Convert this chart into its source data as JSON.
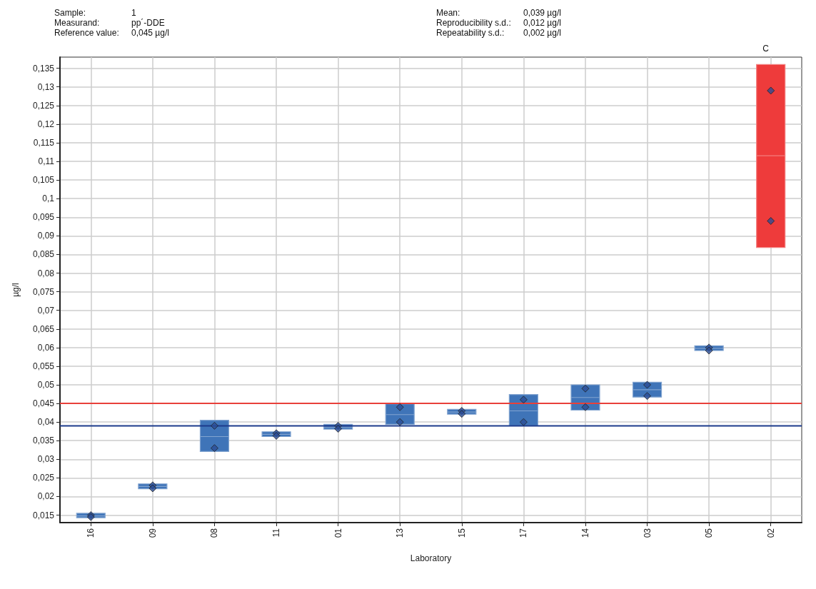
{
  "chart_data": {
    "type": "box",
    "annotations": [
      "Sample:",
      "1",
      "Measurand:",
      "pp´-DDE",
      "Reference value:",
      "0,045 µg/l",
      "Mean:",
      "0,039 µg/l",
      "Reproducibility s.d.:",
      "0,012 µg/l",
      "Repeatability s.d.:",
      "0,002 µg/l",
      "C"
    ],
    "xlabel": "Laboratory",
    "ylabel": "µg/l",
    "categories": [
      "16",
      "09",
      "08",
      "11",
      "01",
      "13",
      "15",
      "17",
      "14",
      "03",
      "05",
      "02"
    ],
    "series": [
      {
        "color": "#3f74b8",
        "boxes": [
          {
            "low": 0.0143,
            "q1": 0.0143,
            "median": 0.0148,
            "q3": 0.0155,
            "high": 0.0155
          },
          {
            "low": 0.0221,
            "q1": 0.0221,
            "median": 0.0227,
            "q3": 0.0234,
            "high": 0.0234
          },
          {
            "low": 0.0321,
            "q1": 0.0321,
            "median": 0.0361,
            "q3": 0.0405,
            "high": 0.0405
          },
          {
            "low": 0.0361,
            "q1": 0.0361,
            "median": 0.0367,
            "q3": 0.0374,
            "high": 0.0374
          },
          {
            "low": 0.0381,
            "q1": 0.0381,
            "median": 0.0386,
            "q3": 0.0394,
            "high": 0.0394
          },
          {
            "low": 0.0394,
            "q1": 0.0394,
            "median": 0.042,
            "q3": 0.0449,
            "high": 0.0449
          },
          {
            "low": 0.0421,
            "q1": 0.0421,
            "median": 0.0427,
            "q3": 0.0434,
            "high": 0.0434
          },
          {
            "low": 0.039,
            "q1": 0.039,
            "median": 0.043,
            "q3": 0.0474,
            "high": 0.0474
          },
          {
            "low": 0.0432,
            "q1": 0.0432,
            "median": 0.0466,
            "q3": 0.05,
            "high": 0.05
          },
          {
            "low": 0.0467,
            "q1": 0.0467,
            "median": 0.0487,
            "q3": 0.0507,
            "high": 0.0507
          },
          {
            "low": 0.0592,
            "q1": 0.0592,
            "median": 0.0598,
            "q3": 0.0605,
            "high": 0.0605
          },
          null
        ]
      },
      {
        "color": "#ee3b3b",
        "boxes": [
          null,
          null,
          null,
          null,
          null,
          null,
          null,
          null,
          null,
          null,
          null,
          {
            "low": 0.0869,
            "q1": 0.0869,
            "median": 0.1115,
            "q3": 0.136,
            "high": 0.136
          }
        ]
      },
      {
        "type": "scatter",
        "color": "#2c4d96",
        "x": [
          "16",
          "16",
          "09",
          "09",
          "08",
          "08",
          "11",
          "11",
          "01",
          "01",
          "13",
          "13",
          "15",
          "15",
          "17",
          "17",
          "14",
          "14",
          "03",
          "03",
          "05",
          "05",
          "02",
          "02"
        ],
        "values": [
          0.015,
          0.0145,
          0.023,
          0.0222,
          0.039,
          0.033,
          0.037,
          0.0363,
          0.039,
          0.0382,
          0.044,
          0.04,
          0.043,
          0.0422,
          0.046,
          0.04,
          0.049,
          0.044,
          0.05,
          0.047,
          0.06,
          0.0592,
          0.129,
          0.094
        ]
      }
    ],
    "ref_lines": [
      {
        "axis": "y",
        "value": 0.045,
        "color": "#e8403a"
      },
      {
        "axis": "y",
        "value": 0.039,
        "color": "#1c3b8c"
      }
    ],
    "ylim": [
      0.013,
      0.138
    ],
    "yticks": [
      {
        "value": 0.015,
        "label": "0,015"
      },
      {
        "value": 0.02,
        "label": "0,02"
      },
      {
        "value": 0.025,
        "label": "0,025"
      },
      {
        "value": 0.03,
        "label": "0,03"
      },
      {
        "value": 0.035,
        "label": "0,035"
      },
      {
        "value": 0.04,
        "label": "0,04"
      },
      {
        "value": 0.045,
        "label": "0,045"
      },
      {
        "value": 0.05,
        "label": "0,05"
      },
      {
        "value": 0.055,
        "label": "0,055"
      },
      {
        "value": 0.06,
        "label": "0,06"
      },
      {
        "value": 0.065,
        "label": "0,065"
      },
      {
        "value": 0.07,
        "label": "0,07"
      },
      {
        "value": 0.075,
        "label": "0,075"
      },
      {
        "value": 0.08,
        "label": "0,08"
      },
      {
        "value": 0.085,
        "label": "0,085"
      },
      {
        "value": 0.09,
        "label": "0,09"
      },
      {
        "value": 0.095,
        "label": "0,095"
      },
      {
        "value": 0.1,
        "label": "0,1"
      },
      {
        "value": 0.105,
        "label": "0,105"
      },
      {
        "value": 0.11,
        "label": "0,11"
      },
      {
        "value": 0.115,
        "label": "0,115"
      },
      {
        "value": 0.12,
        "label": "0,12"
      },
      {
        "value": 0.125,
        "label": "0,125"
      },
      {
        "value": 0.13,
        "label": "0,13"
      },
      {
        "value": 0.135,
        "label": "0,135"
      }
    ],
    "grid": true,
    "marker": "diamond"
  }
}
